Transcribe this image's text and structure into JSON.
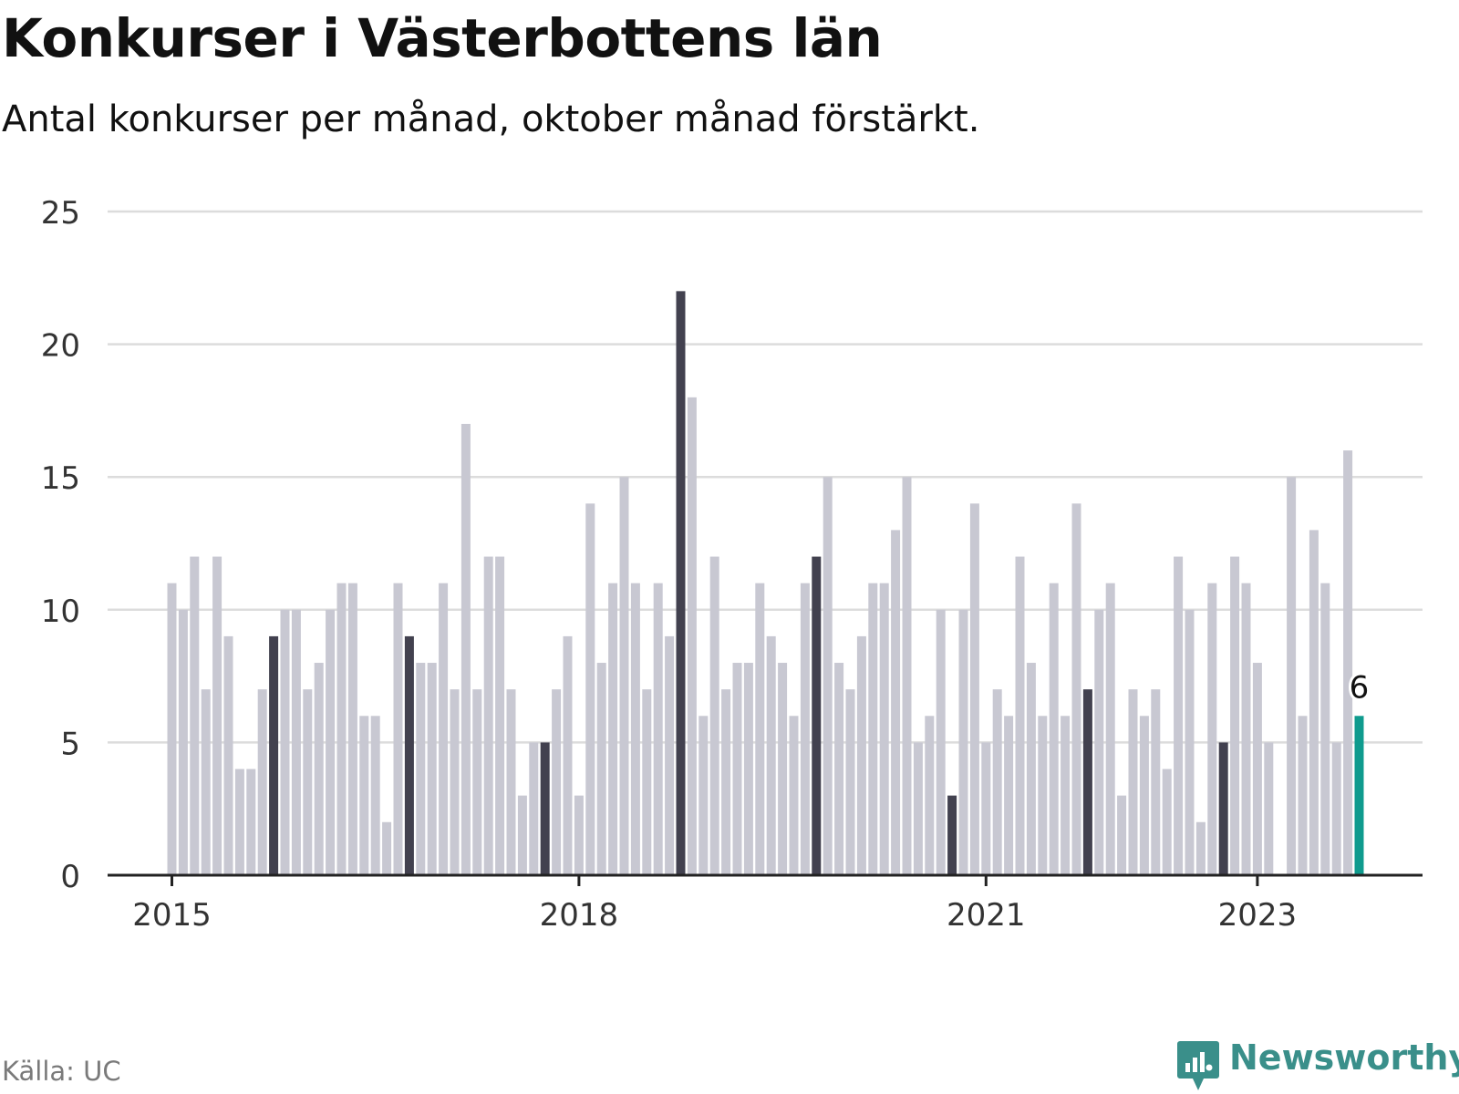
{
  "title": "Konkurser i Västerbottens län",
  "subtitle": "Antal konkurser per månad, oktober månad förstärkt.",
  "source": "Källa: UC",
  "brand": {
    "name": "Newsworthy",
    "icon": "newsworthy-logo-icon",
    "color": "#3a8f8a"
  },
  "colors": {
    "bar": "#c8c8d2",
    "highlight": "#42414f",
    "latest": "#0f9b8e",
    "grid": "#dcdcdc",
    "axis": "#222222"
  },
  "chart_data": {
    "type": "bar",
    "start": "2015-01",
    "end": "2023-10",
    "values": [
      11,
      10,
      12,
      7,
      12,
      9,
      4,
      4,
      7,
      9,
      10,
      10,
      7,
      8,
      10,
      11,
      11,
      6,
      6,
      2,
      11,
      9,
      8,
      8,
      11,
      7,
      17,
      7,
      12,
      12,
      7,
      3,
      5,
      5,
      7,
      9,
      3,
      14,
      8,
      11,
      15,
      11,
      7,
      11,
      9,
      22,
      18,
      6,
      12,
      7,
      8,
      8,
      11,
      9,
      8,
      6,
      11,
      12,
      15,
      8,
      7,
      9,
      11,
      11,
      13,
      15,
      5,
      6,
      10,
      3,
      10,
      14,
      5,
      7,
      6,
      12,
      8,
      6,
      11,
      6,
      14,
      7,
      10,
      11,
      3,
      7,
      6,
      7,
      4,
      12,
      10,
      2,
      11,
      5,
      12,
      11,
      8,
      5,
      0,
      15,
      6,
      13,
      11,
      5,
      16,
      6
    ],
    "highlight_month": "oktober",
    "x_tick_labels": [
      "2015",
      "2018",
      "2021",
      "2023"
    ],
    "ylim": [
      0,
      25
    ],
    "y_ticks": [
      0,
      5,
      10,
      15,
      20,
      25
    ],
    "last_value_label": "6",
    "grid": true,
    "legend": "none"
  }
}
